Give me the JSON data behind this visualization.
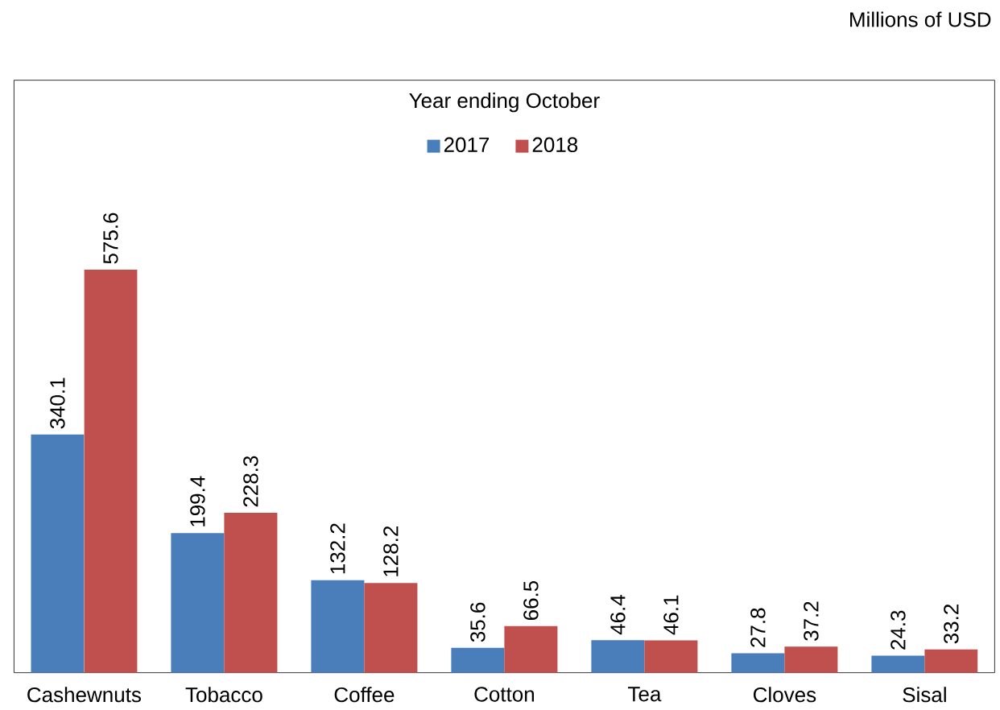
{
  "chart_data": {
    "type": "bar",
    "title": "Year ending October",
    "annotations": [
      "Millions of USD"
    ],
    "categories": [
      "Cashewnuts",
      "Tobacco",
      "Coffee",
      "Cotton",
      "Tea",
      "Cloves",
      "Sisal"
    ],
    "series": [
      {
        "name": "2017",
        "color": "#4a7ebb",
        "values": [
          340.1,
          199.4,
          132.2,
          35.6,
          46.4,
          27.8,
          24.3
        ]
      },
      {
        "name": "2018",
        "color": "#c0504d",
        "values": [
          575.6,
          228.3,
          128.2,
          66.5,
          46.1,
          37.2,
          33.2
        ]
      }
    ],
    "data_labels": true,
    "legend": "top",
    "tick_labels": "x"
  }
}
